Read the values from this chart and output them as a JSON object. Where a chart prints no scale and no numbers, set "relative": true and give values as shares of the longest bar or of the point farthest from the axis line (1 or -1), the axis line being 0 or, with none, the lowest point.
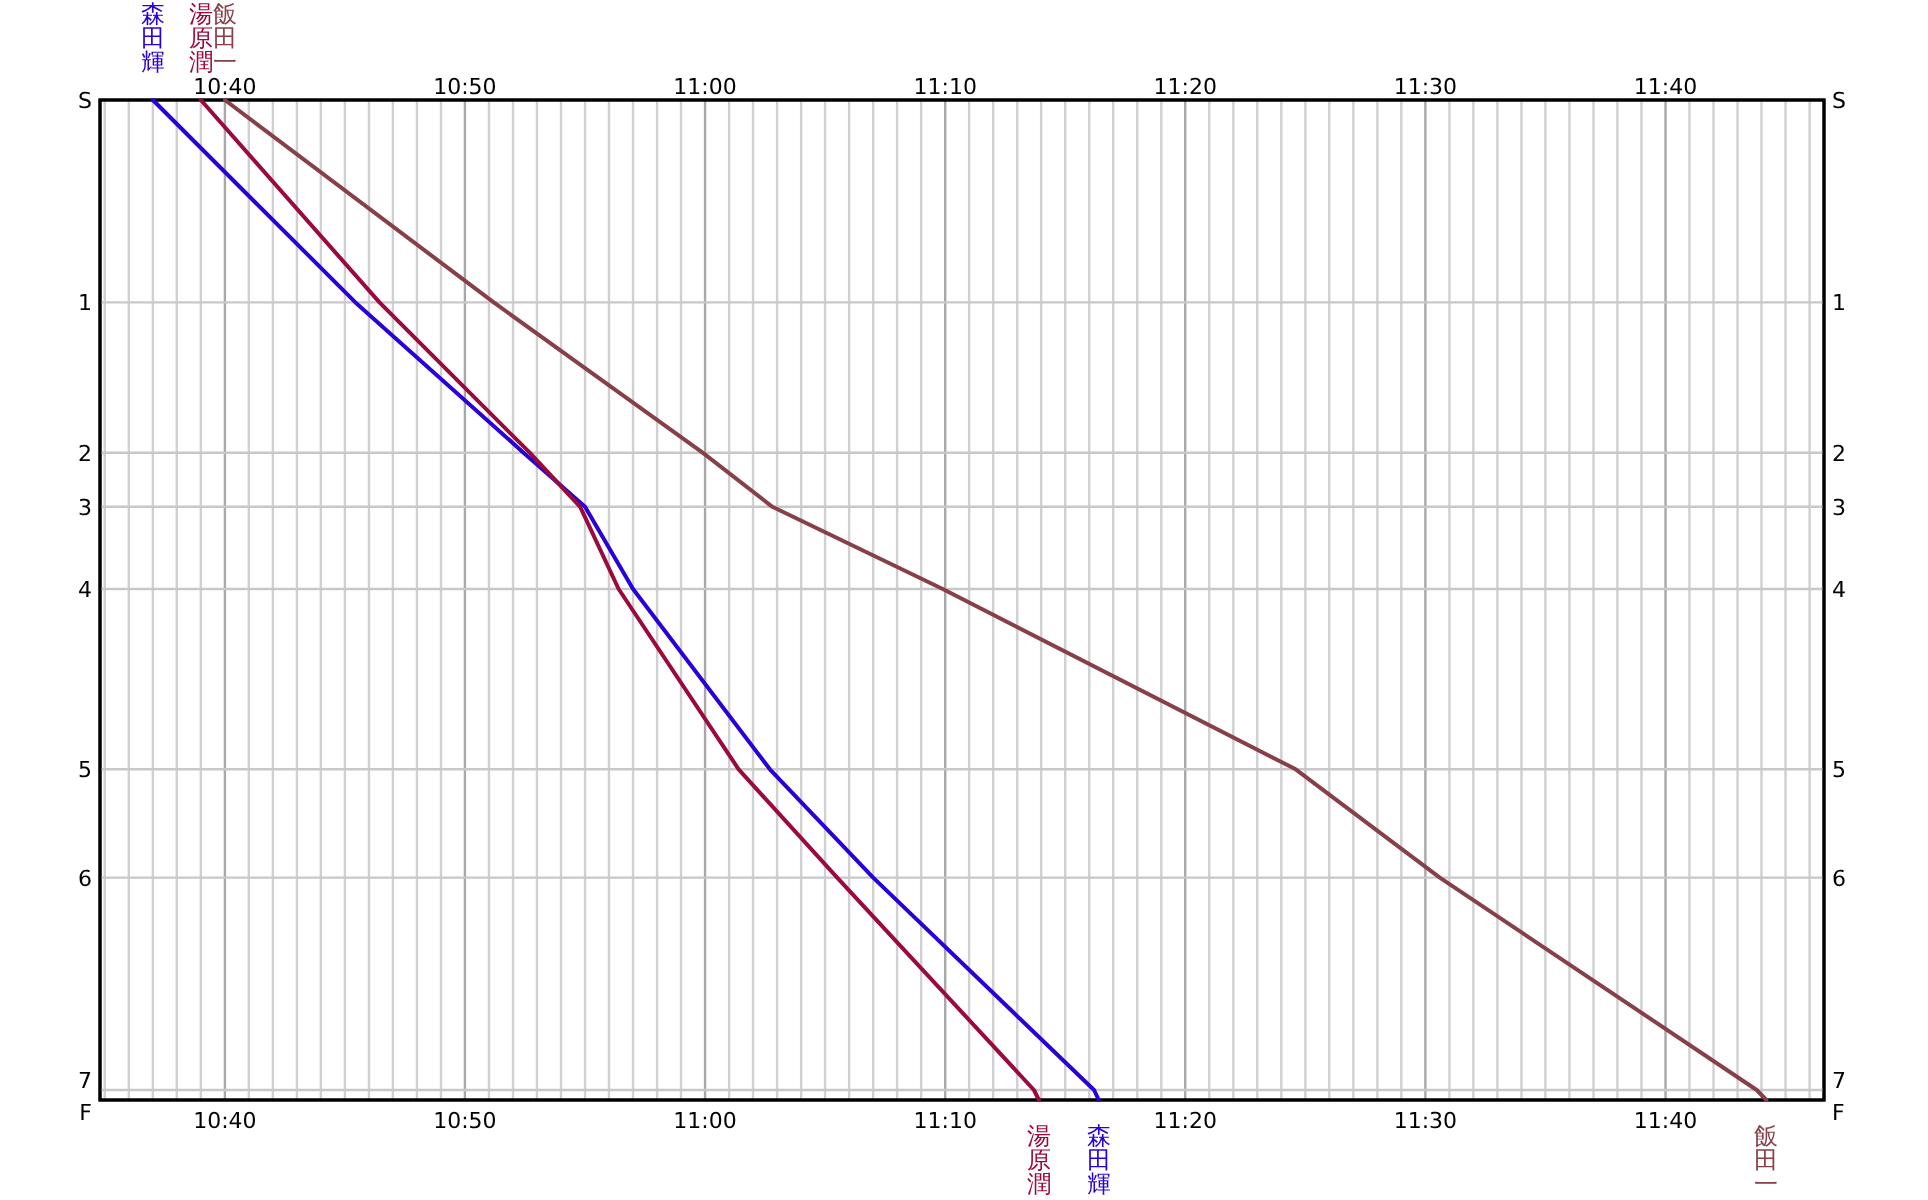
{
  "chart_data": {
    "type": "line",
    "series": [
      {
        "name": "森田輝",
        "color": "#2a00d8",
        "x": [
          10.6167,
          10.7573,
          10.874,
          10.9167,
          10.95,
          11.045,
          11.1167,
          11.27,
          11.2733
        ],
        "values": [
          1,
          0.7976,
          0.6473,
          0.5932,
          0.511,
          0.3307,
          0.2224,
          0.01,
          0
        ]
      },
      {
        "name": "湯原潤",
        "color": "#9a0a3a",
        "x": [
          10.65,
          10.774,
          10.8783,
          10.9133,
          10.94,
          11.0233,
          11.0917,
          11.2283,
          11.2317
        ],
        "values": [
          1,
          0.7976,
          0.6473,
          0.5932,
          0.511,
          0.3307,
          0.2224,
          0.01,
          0
        ]
      },
      {
        "name": "飯田一",
        "color": "#884048",
        "x": [
          10.6667,
          10.8533,
          10.9983,
          11.0467,
          11.165,
          11.41,
          11.51,
          11.73,
          11.7367
        ],
        "values": [
          1,
          0.7976,
          0.6473,
          0.5932,
          0.511,
          0.3307,
          0.2224,
          0.01,
          0
        ]
      }
    ],
    "xlim": [
      10.58,
      11.7767
    ],
    "xticks": [
      {
        "value": 10.5833,
        "label": null
      },
      {
        "value": 10.6,
        "label": null
      },
      {
        "value": 10.6167,
        "label": null
      },
      {
        "value": 10.6333,
        "label": null
      },
      {
        "value": 10.65,
        "label": null
      },
      {
        "value": 10.6667,
        "label": "10:40"
      },
      {
        "value": 10.6833,
        "label": null
      },
      {
        "value": 10.7,
        "label": null
      },
      {
        "value": 10.7167,
        "label": null
      },
      {
        "value": 10.7333,
        "label": null
      },
      {
        "value": 10.75,
        "label": null
      },
      {
        "value": 10.7667,
        "label": null
      },
      {
        "value": 10.7833,
        "label": null
      },
      {
        "value": 10.8,
        "label": null
      },
      {
        "value": 10.8167,
        "label": null
      },
      {
        "value": 10.8333,
        "label": "10:50"
      },
      {
        "value": 10.85,
        "label": null
      },
      {
        "value": 10.8667,
        "label": null
      },
      {
        "value": 10.8833,
        "label": null
      },
      {
        "value": 10.9,
        "label": null
      },
      {
        "value": 10.9167,
        "label": null
      },
      {
        "value": 10.9333,
        "label": null
      },
      {
        "value": 10.95,
        "label": null
      },
      {
        "value": 10.9667,
        "label": null
      },
      {
        "value": 10.9833,
        "label": null
      },
      {
        "value": 11,
        "label": "11:00"
      },
      {
        "value": 11.0167,
        "label": null
      },
      {
        "value": 11.0333,
        "label": null
      },
      {
        "value": 11.05,
        "label": null
      },
      {
        "value": 11.0667,
        "label": null
      },
      {
        "value": 11.0833,
        "label": null
      },
      {
        "value": 11.1,
        "label": null
      },
      {
        "value": 11.1167,
        "label": null
      },
      {
        "value": 11.1333,
        "label": null
      },
      {
        "value": 11.15,
        "label": null
      },
      {
        "value": 11.1667,
        "label": "11:10"
      },
      {
        "value": 11.1833,
        "label": null
      },
      {
        "value": 11.2,
        "label": null
      },
      {
        "value": 11.2167,
        "label": null
      },
      {
        "value": 11.2333,
        "label": null
      },
      {
        "value": 11.25,
        "label": null
      },
      {
        "value": 11.2667,
        "label": null
      },
      {
        "value": 11.2833,
        "label": null
      },
      {
        "value": 11.3,
        "label": null
      },
      {
        "value": 11.3167,
        "label": null
      },
      {
        "value": 11.3333,
        "label": "11:20"
      },
      {
        "value": 11.35,
        "label": null
      },
      {
        "value": 11.3667,
        "label": null
      },
      {
        "value": 11.3833,
        "label": null
      },
      {
        "value": 11.4,
        "label": null
      },
      {
        "value": 11.4167,
        "label": null
      },
      {
        "value": 11.4333,
        "label": null
      },
      {
        "value": 11.45,
        "label": null
      },
      {
        "value": 11.4667,
        "label": null
      },
      {
        "value": 11.4833,
        "label": null
      },
      {
        "value": 11.5,
        "label": "11:30"
      },
      {
        "value": 11.5167,
        "label": null
      },
      {
        "value": 11.5333,
        "label": null
      },
      {
        "value": 11.55,
        "label": null
      },
      {
        "value": 11.5667,
        "label": null
      },
      {
        "value": 11.5833,
        "label": null
      },
      {
        "value": 11.6,
        "label": null
      },
      {
        "value": 11.6167,
        "label": null
      },
      {
        "value": 11.6333,
        "label": null
      },
      {
        "value": 11.65,
        "label": null
      },
      {
        "value": 11.6667,
        "label": "11:40"
      },
      {
        "value": 11.6833,
        "label": null
      },
      {
        "value": 11.7,
        "label": null
      },
      {
        "value": 11.7167,
        "label": null
      },
      {
        "value": 11.7333,
        "label": null
      },
      {
        "value": 11.75,
        "label": null
      },
      {
        "value": 11.7667,
        "label": null
      }
    ],
    "x2lim": [
      10.58,
      11.7767
    ],
    "x2ticks": [
      {
        "value": 10.6667,
        "label": "10:40"
      },
      {
        "value": 10.8333,
        "label": "10:50"
      },
      {
        "value": 11,
        "label": "11:00"
      },
      {
        "value": 11.1667,
        "label": "11:10"
      },
      {
        "value": 11.3333,
        "label": "11:20"
      },
      {
        "value": 11.5,
        "label": "11:30"
      },
      {
        "value": 11.6667,
        "label": "11:40"
      }
    ],
    "relative": true,
    "ref_lines": [
      {
        "axis": "y",
        "value": 0.7976
      },
      {
        "axis": "y",
        "value": 0.6473
      },
      {
        "axis": "y",
        "value": 0.5932
      },
      {
        "axis": "y",
        "value": 0.511
      },
      {
        "axis": "y",
        "value": 0.3307
      },
      {
        "axis": "y",
        "value": 0.2224
      },
      {
        "axis": "y",
        "value": 0.01
      }
    ],
    "annotations": [
      "S",
      "1",
      "2",
      "3",
      "4",
      "5",
      "6",
      "7",
      "F"
    ],
    "grid": true
  }
}
